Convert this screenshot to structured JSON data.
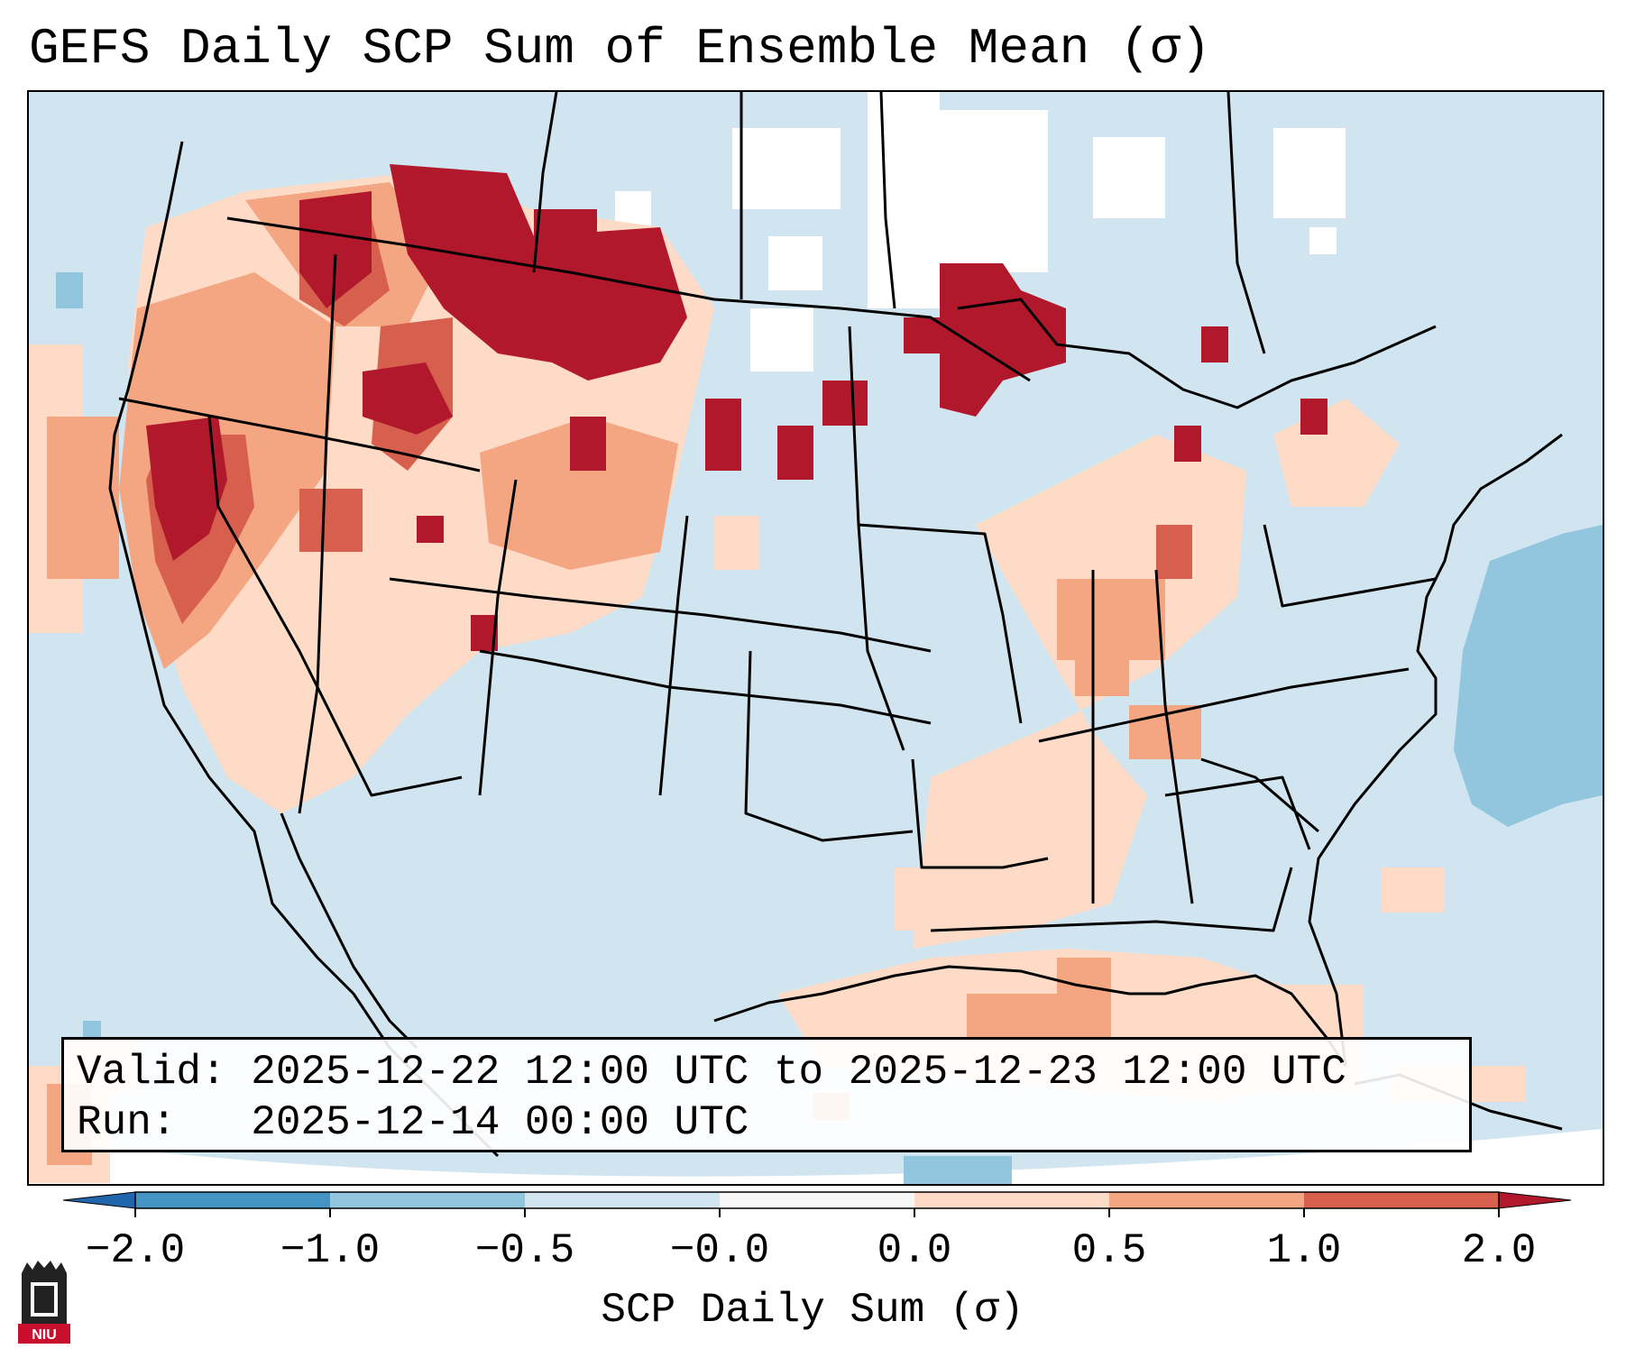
{
  "title": "GEFS Daily SCP Sum of Ensemble Mean (σ)",
  "info": {
    "valid_label": "Valid:",
    "valid_value": "2025-12-22 12:00 UTC to 2025-12-23 12:00 UTC",
    "run_label": "Run:",
    "run_value": "2025-12-14 00:00 UTC"
  },
  "colorbar": {
    "label": "SCP Daily Sum (σ)",
    "ticks": [
      "−2.0",
      "−1.0",
      "−0.5",
      "−0.0",
      "0.0",
      "0.5",
      "1.0",
      "2.0"
    ],
    "bins": [
      {
        "range": "< -2.0",
        "color": "#2166ac"
      },
      {
        "range": "-2.0 to -1.0",
        "color": "#4393c3"
      },
      {
        "range": "-1.0 to -0.5",
        "color": "#92c5de"
      },
      {
        "range": "-0.5 to -0.0",
        "color": "#d1e5f0"
      },
      {
        "range": "-0.0 to 0.0",
        "color": "#f7f7f7"
      },
      {
        "range": "0.0 to 0.5",
        "color": "#fddbc7"
      },
      {
        "range": "0.5 to 1.0",
        "color": "#f4a582"
      },
      {
        "range": "1.0 to 2.0",
        "color": "#d6604d"
      },
      {
        "range": "> 2.0",
        "color": "#b2182b"
      }
    ]
  },
  "map": {
    "projection": "Lambert conformal",
    "region": "Contiguous United States",
    "ocean_color": "#d1e5f0",
    "outside_domain_color": "#ffffff",
    "border_color": "#000000"
  },
  "logo": {
    "text": "NIU",
    "color": "#c8102e"
  }
}
